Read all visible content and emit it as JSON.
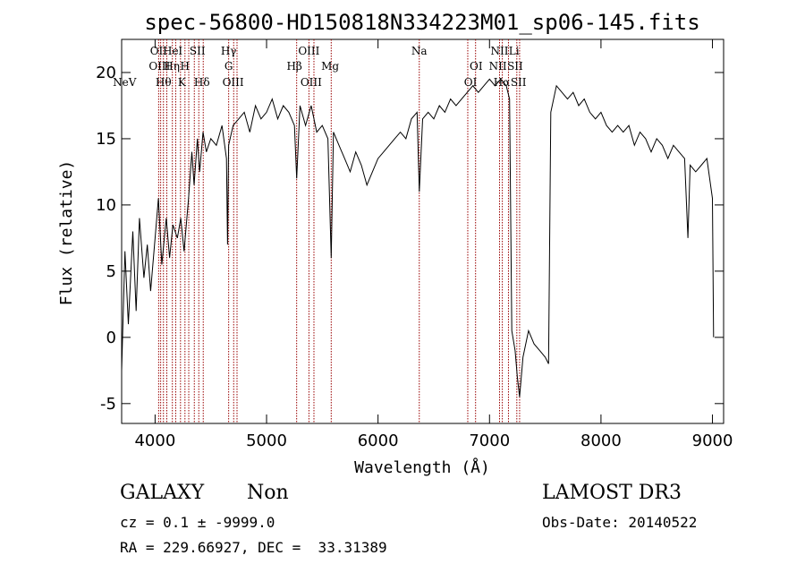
{
  "chart_data": {
    "type": "line",
    "title": "spec-56800-HD150818N334223M01_sp06-145.fits",
    "xlabel": "Wavelength (Å)",
    "ylabel": "Flux (relative)",
    "xlim": [
      3700,
      9100
    ],
    "ylim": [
      -6.5,
      22.5
    ],
    "x_ticks": [
      4000,
      5000,
      6000,
      7000,
      8000,
      9000
    ],
    "y_ticks": [
      -5,
      0,
      5,
      10,
      15,
      20
    ],
    "series": [
      {
        "name": "Flux",
        "x": [
          3700,
          3730,
          3760,
          3800,
          3830,
          3860,
          3900,
          3930,
          3960,
          4000,
          4030,
          4060,
          4100,
          4130,
          4160,
          4200,
          4230,
          4260,
          4300,
          4330,
          4350,
          4380,
          4400,
          4430,
          4460,
          4500,
          4550,
          4600,
          4640,
          4650,
          4660,
          4700,
          4750,
          4800,
          4850,
          4900,
          4950,
          5000,
          5050,
          5100,
          5150,
          5200,
          5250,
          5270,
          5300,
          5350,
          5400,
          5450,
          5500,
          5550,
          5580,
          5600,
          5650,
          5700,
          5750,
          5800,
          5850,
          5900,
          5950,
          6000,
          6050,
          6100,
          6150,
          6200,
          6250,
          6300,
          6350,
          6370,
          6400,
          6450,
          6500,
          6550,
          6600,
          6650,
          6700,
          6750,
          6800,
          6850,
          6900,
          6950,
          7000,
          7050,
          7100,
          7150,
          7180,
          7200,
          7230,
          7250,
          7270,
          7300,
          7350,
          7400,
          7450,
          7500,
          7530,
          7550,
          7600,
          7650,
          7700,
          7750,
          7800,
          7850,
          7900,
          7950,
          8000,
          8050,
          8100,
          8150,
          8200,
          8250,
          8300,
          8350,
          8400,
          8450,
          8500,
          8550,
          8600,
          8650,
          8700,
          8750,
          8780,
          8800,
          8850,
          8900,
          8950,
          9000,
          9010
        ],
        "y": [
          -2.5,
          6.5,
          1.0,
          8.0,
          2.0,
          9.0,
          4.5,
          7.0,
          3.5,
          7.5,
          10.5,
          5.5,
          9.0,
          6.0,
          8.5,
          7.5,
          9.0,
          6.5,
          10.5,
          14.0,
          11.5,
          15.0,
          12.5,
          15.5,
          14.0,
          15.0,
          14.5,
          16.0,
          13.5,
          7.0,
          14.5,
          16.0,
          16.5,
          17.0,
          15.5,
          17.5,
          16.5,
          17.0,
          18.0,
          16.5,
          17.5,
          17.0,
          16.0,
          12.0,
          17.5,
          16.0,
          17.5,
          15.5,
          16.0,
          15.0,
          6.0,
          15.5,
          14.5,
          13.5,
          12.5,
          14.0,
          13.0,
          11.5,
          12.5,
          13.5,
          14.0,
          14.5,
          15.0,
          15.5,
          15.0,
          16.5,
          17.0,
          11.0,
          16.5,
          17.0,
          16.5,
          17.5,
          17.0,
          18.0,
          17.5,
          18.0,
          18.5,
          19.0,
          18.5,
          19.0,
          19.5,
          19.0,
          19.5,
          19.0,
          18.0,
          0.5,
          -1.0,
          -3.0,
          -4.5,
          -1.5,
          0.5,
          -0.5,
          -1.0,
          -1.5,
          -2.0,
          17.0,
          19.0,
          18.5,
          18.0,
          18.5,
          17.5,
          18.0,
          17.0,
          16.5,
          17.0,
          16.0,
          15.5,
          16.0,
          15.5,
          16.0,
          14.5,
          15.5,
          15.0,
          14.0,
          15.0,
          14.5,
          13.5,
          14.5,
          14.0,
          13.5,
          7.5,
          13.0,
          12.5,
          13.0,
          13.5,
          10.5,
          0.0
        ]
      }
    ],
    "emission_lines": [
      {
        "label": "NeV",
        "x": 3726,
        "row": 3
      },
      {
        "label": "OII",
        "x": 4032,
        "row": 1
      },
      {
        "label": "OIII",
        "x": 4040,
        "row": 2
      },
      {
        "label": "Hθ",
        "x": 4075,
        "row": 3
      },
      {
        "label": "He",
        "x": 4140,
        "row": 1
      },
      {
        "label": "Hη",
        "x": 4150,
        "row": 2
      },
      {
        "label": "I",
        "x": 4228,
        "row": 1
      },
      {
        "label": "H",
        "x": 4268,
        "row": 2
      },
      {
        "label": "K",
        "x": 4240,
        "row": 3
      },
      {
        "label": "SII",
        "x": 4380,
        "row": 1
      },
      {
        "label": "Hδ",
        "x": 4420,
        "row": 3
      },
      {
        "label": "Hγ",
        "x": 4660,
        "row": 1
      },
      {
        "label": "G",
        "x": 4660,
        "row": 2
      },
      {
        "label": "OIII",
        "x": 4700,
        "row": 3
      },
      {
        "label": "Hβ",
        "x": 5250,
        "row": 2
      },
      {
        "label": "OIII",
        "x": 5380,
        "row": 1
      },
      {
        "label": "OIII",
        "x": 5400,
        "row": 3
      },
      {
        "label": "Mg",
        "x": 5570,
        "row": 2
      },
      {
        "label": "Na",
        "x": 6370,
        "row": 1
      },
      {
        "label": "OI",
        "x": 6880,
        "row": 2
      },
      {
        "label": "OI",
        "x": 6830,
        "row": 3
      },
      {
        "label": "NII",
        "x": 7090,
        "row": 1
      },
      {
        "label": "NII",
        "x": 7075,
        "row": 2
      },
      {
        "label": "Hα",
        "x": 7110,
        "row": 3
      },
      {
        "label": "Li",
        "x": 7220,
        "row": 1
      },
      {
        "label": "SII",
        "x": 7230,
        "row": 2
      },
      {
        "label": "SII",
        "x": 7260,
        "row": 3
      }
    ],
    "line_markers_x": [
      4032,
      4050,
      4075,
      4105,
      4155,
      4185,
      4228,
      4268,
      4302,
      4352,
      4392,
      4432,
      4660,
      4705,
      4735,
      5270,
      5380,
      5425,
      5580,
      6370,
      6805,
      6875,
      7090,
      7115,
      7170,
      7245,
      7270
    ]
  },
  "info": {
    "object_class": "GALAXY",
    "subclass": "Non",
    "survey": "LAMOST DR3",
    "cz": "cz = 0.1 ± -9999.0",
    "obs_date": "Obs-Date: 20140522",
    "coords": "RA = 229.66927, DEC =  33.31389"
  },
  "colors": {
    "marker_line": "#990000",
    "spectrum": "#000000"
  }
}
